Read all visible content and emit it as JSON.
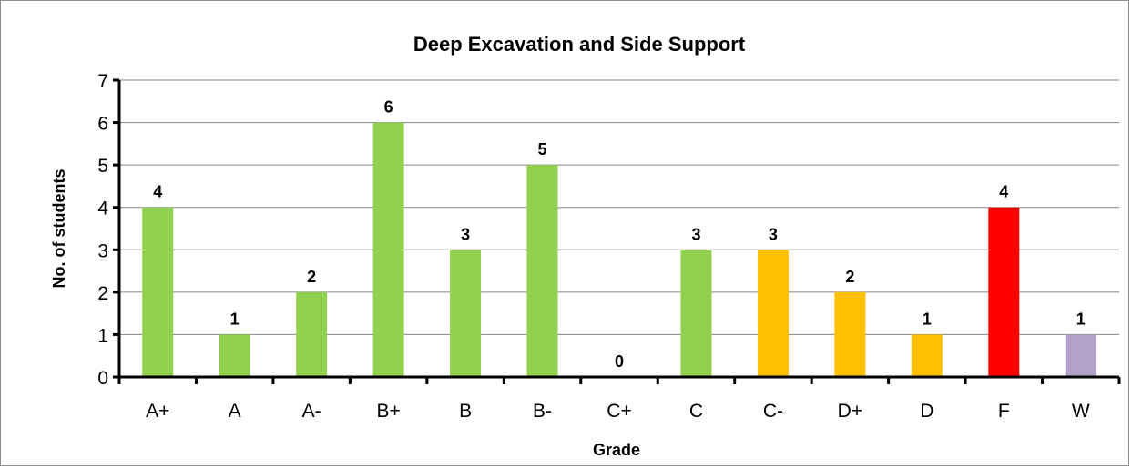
{
  "chart_data": {
    "type": "bar",
    "title": "Deep Excavation and Side Support",
    "xlabel": "Grade",
    "ylabel": "No. of students",
    "categories": [
      "A+",
      "A",
      "A-",
      "B+",
      "B",
      "B-",
      "C+",
      "C",
      "C-",
      "D+",
      "D",
      "F",
      "W"
    ],
    "values": [
      4,
      1,
      2,
      6,
      3,
      5,
      0,
      3,
      3,
      2,
      1,
      4,
      1
    ],
    "bar_colors": [
      "#92d050",
      "#92d050",
      "#92d050",
      "#92d050",
      "#92d050",
      "#92d050",
      "#92d050",
      "#92d050",
      "#ffc000",
      "#ffc000",
      "#ffc000",
      "#ff0000",
      "#b1a0c7"
    ],
    "ylim": [
      0,
      7
    ],
    "yticks": [
      0,
      1,
      2,
      3,
      4,
      5,
      6,
      7
    ],
    "grid": true,
    "legend": "none",
    "data_labels": true
  }
}
